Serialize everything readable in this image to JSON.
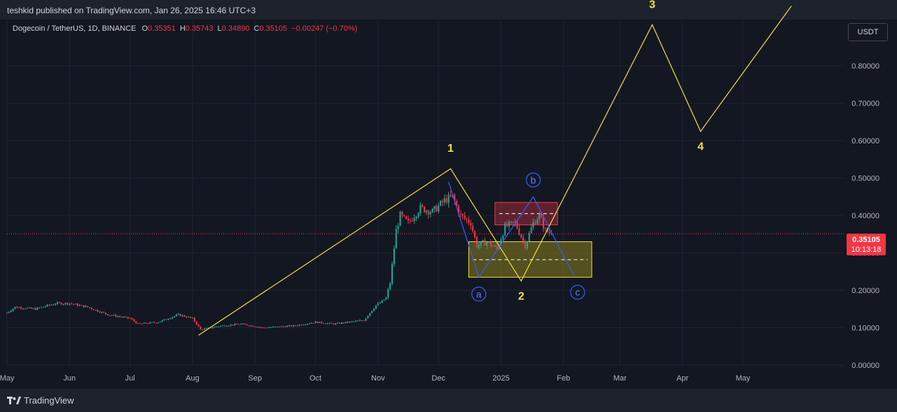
{
  "header": {
    "publisher_line": "teshkid published on TradingView.com, Jan 26, 2025 16:46 UTC+3"
  },
  "legend": {
    "symbol": "Dogecoin / TetherUS, 1D, BINANCE",
    "open_label": "O",
    "open": "0.35351",
    "high_label": "H",
    "high": "0.35743",
    "low_label": "L",
    "low": "0.34890",
    "close_label": "C",
    "close": "0.35105",
    "change": "−0.00247 (−0.70%)"
  },
  "currency_button": "USDT",
  "last_price": {
    "price": "0.35105",
    "countdown": "10:13:18"
  },
  "footer": {
    "brand": "TradingView"
  },
  "colors": {
    "background": "#131722",
    "up": "#26a69a",
    "down": "#f23645",
    "wave_lines": "#f2e13a",
    "corrective_lines": "#3d5afe",
    "supply_zone": "#9c2b3a",
    "demand_zone": "#8a7f1d"
  },
  "chart_data": {
    "type": "candlestick",
    "pair": "DOGE/USDT",
    "timeframe": "1D",
    "x_ticks": [
      "May",
      "Jun",
      "Jul",
      "Aug",
      "Sep",
      "Oct",
      "Nov",
      "Dec",
      "2025",
      "Feb",
      "Mar",
      "Apr",
      "May"
    ],
    "y_ticks": [
      "0.00000",
      "0.10000",
      "0.20000",
      "0.30000",
      "0.40000",
      "0.50000",
      "0.60000",
      "0.70000",
      "0.80000"
    ],
    "ylim": [
      0.0,
      0.92
    ],
    "x_range": [
      "2024-05-01",
      "2025-06-20"
    ],
    "last_price_line": 0.35105,
    "price_path": [
      [
        "2024-05-01",
        0.14
      ],
      [
        "2024-05-05",
        0.155
      ],
      [
        "2024-05-15",
        0.15
      ],
      [
        "2024-05-25",
        0.165
      ],
      [
        "2024-06-01",
        0.165
      ],
      [
        "2024-06-10",
        0.155
      ],
      [
        "2024-06-20",
        0.135
      ],
      [
        "2024-07-01",
        0.125
      ],
      [
        "2024-07-05",
        0.11
      ],
      [
        "2024-07-15",
        0.115
      ],
      [
        "2024-07-25",
        0.135
      ],
      [
        "2024-08-01",
        0.125
      ],
      [
        "2024-08-05",
        0.095
      ],
      [
        "2024-08-15",
        0.105
      ],
      [
        "2024-08-25",
        0.11
      ],
      [
        "2024-09-05",
        0.1
      ],
      [
        "2024-09-20",
        0.105
      ],
      [
        "2024-10-01",
        0.115
      ],
      [
        "2024-10-10",
        0.11
      ],
      [
        "2024-10-25",
        0.12
      ],
      [
        "2024-10-31",
        0.16
      ],
      [
        "2024-11-03",
        0.17
      ],
      [
        "2024-11-05",
        0.18
      ],
      [
        "2024-11-07",
        0.22
      ],
      [
        "2024-11-10",
        0.36
      ],
      [
        "2024-11-12",
        0.4
      ],
      [
        "2024-11-16",
        0.38
      ],
      [
        "2024-11-22",
        0.42
      ],
      [
        "2024-11-28",
        0.41
      ],
      [
        "2024-12-04",
        0.44
      ],
      [
        "2024-12-08",
        0.45
      ],
      [
        "2024-12-12",
        0.4
      ],
      [
        "2024-12-17",
        0.38
      ],
      [
        "2024-12-20",
        0.32
      ],
      [
        "2024-12-25",
        0.33
      ],
      [
        "2024-12-30",
        0.31
      ],
      [
        "2025-01-03",
        0.37
      ],
      [
        "2025-01-08",
        0.38
      ],
      [
        "2025-01-13",
        0.32
      ],
      [
        "2025-01-17",
        0.38
      ],
      [
        "2025-01-20",
        0.4
      ],
      [
        "2025-01-23",
        0.36
      ],
      [
        "2025-01-26",
        0.35105
      ]
    ],
    "wave_labels": [
      {
        "label": "1",
        "date": "2024-12-07",
        "price": 0.57
      },
      {
        "label": "2",
        "date": "2025-01-11",
        "price": 0.175
      },
      {
        "label": "3",
        "date": "2025-03-17",
        "price": 0.955
      },
      {
        "label": "4",
        "date": "2025-04-10",
        "price": 0.575
      }
    ],
    "wave_path": [
      [
        "2024-08-04",
        0.08
      ],
      [
        "2024-12-07",
        0.525
      ],
      [
        "2025-01-11",
        0.225
      ],
      [
        "2025-03-17",
        0.91
      ],
      [
        "2025-04-10",
        0.625
      ],
      [
        "2025-05-25",
        0.96
      ]
    ],
    "corrective_labels": [
      {
        "label": "a",
        "date": "2024-12-21",
        "price": 0.19
      },
      {
        "label": "b",
        "date": "2025-01-17",
        "price": 0.495
      },
      {
        "label": "c",
        "date": "2025-02-08",
        "price": 0.195
      }
    ],
    "corrective_path": [
      [
        "2024-12-06",
        0.49
      ],
      [
        "2024-12-21",
        0.235
      ],
      [
        "2025-01-17",
        0.45
      ],
      [
        "2025-02-06",
        0.24
      ]
    ],
    "zones": [
      {
        "kind": "supply",
        "from": "2024-12-29",
        "to": "2025-01-29",
        "low": 0.375,
        "high": 0.435,
        "mid": 0.405
      },
      {
        "kind": "demand",
        "from": "2024-12-16",
        "to": "2025-02-15",
        "low": 0.235,
        "high": 0.33,
        "mid": 0.282
      }
    ]
  }
}
